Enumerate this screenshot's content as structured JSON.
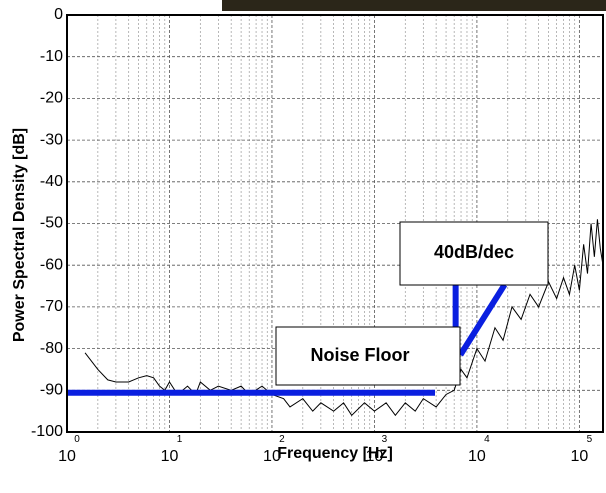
{
  "chart_data": {
    "type": "line",
    "xlabel": "Frequency [Hz]",
    "ylabel": "Power Spectral Density [dB]",
    "xlog": true,
    "grid": true,
    "xlim": [
      1,
      170000
    ],
    "ylim": [
      -100,
      0
    ],
    "xticks": [
      {
        "value": 1,
        "label": "10",
        "exponent": "0"
      },
      {
        "value": 10,
        "label": "10",
        "exponent": "1"
      },
      {
        "value": 100,
        "label": "10",
        "exponent": "2"
      },
      {
        "value": 1000,
        "label": "10",
        "exponent": "3"
      },
      {
        "value": 10000,
        "label": "10",
        "exponent": "4"
      },
      {
        "value": 100000,
        "label": "10",
        "exponent": "5"
      }
    ],
    "yticks": [
      0,
      -10,
      -20,
      -30,
      -40,
      -50,
      -60,
      -70,
      -80,
      -90,
      -100
    ],
    "series": [
      {
        "color": "#000000",
        "x": [
          1.5,
          2,
          2.5,
          3,
          4,
          5,
          6,
          7,
          8,
          9,
          10,
          12,
          15,
          18,
          20,
          25,
          30,
          40,
          50,
          60,
          80,
          100,
          130,
          150,
          200,
          250,
          300,
          400,
          500,
          600,
          800,
          1000,
          1300,
          1600,
          2000,
          2500,
          3000,
          4000,
          5000,
          6000,
          7000,
          8000,
          10000,
          12000,
          15000,
          18000,
          22000,
          27000,
          33000,
          40000,
          50000,
          60000,
          70000,
          80000,
          90000,
          100000,
          110000,
          120000,
          130000,
          140000,
          150000,
          160000,
          170000
        ],
        "values": [
          -81,
          -85,
          -87.5,
          -88,
          -88,
          -87,
          -86.5,
          -87,
          -89,
          -90,
          -88,
          -91,
          -89,
          -91,
          -88,
          -90,
          -89,
          -90,
          -89,
          -91,
          -89,
          -91,
          -92,
          -94,
          -92,
          -95,
          -93,
          -95,
          -93,
          -96,
          -93,
          -95,
          -93,
          -96,
          -93,
          -95,
          -92,
          -94,
          -91,
          -90,
          -85,
          -87,
          -80,
          -83,
          -75,
          -78,
          -70,
          -73,
          -67,
          -70,
          -64,
          -68,
          -63,
          -67,
          -60,
          -66,
          -55,
          -62,
          -50,
          -58,
          -49,
          -56,
          -60
        ]
      }
    ],
    "guide_lines": [
      {
        "color": "#0a1fe0",
        "x": [
          1,
          3900
        ],
        "values": [
          -90.6,
          -90.6
        ]
      },
      {
        "color": "#0a1fe0",
        "x": [
          6200,
          6200
        ],
        "values": [
          -64.7,
          -75.5
        ]
      },
      {
        "color": "#0a1fe0",
        "x": [
          6900,
          18600
        ],
        "values": [
          -81.5,
          -64.7
        ]
      }
    ],
    "annotations": [
      {
        "label": "40dB/dec"
      },
      {
        "label": "Noise Floor"
      }
    ]
  }
}
